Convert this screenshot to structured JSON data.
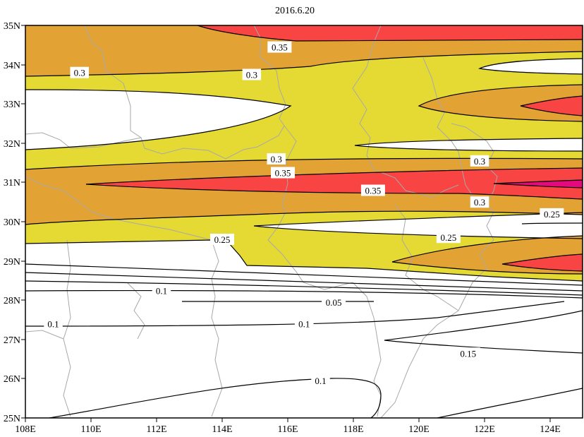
{
  "title": "2016.6.20",
  "colors": {
    "fill_025": "#e5da34",
    "fill_030": "#e3a334",
    "fill_035": "#f84443",
    "fill_040": "#e4097d",
    "contour_line": "#000000",
    "boundary_line": "#a8a8a8",
    "background": "#ffffff"
  },
  "axes": {
    "x_ticks": [
      "108E",
      "110E",
      "112E",
      "114E",
      "116E",
      "118E",
      "120E",
      "122E",
      "124E"
    ],
    "y_ticks": [
      "35N",
      "34N",
      "33N",
      "32N",
      "31N",
      "30N",
      "29N",
      "28N",
      "27N",
      "26N",
      "25N"
    ]
  },
  "contour_labels": [
    {
      "text": "0.35",
      "lon": 115.75,
      "lat": 34.45
    },
    {
      "text": "0.3",
      "lon": 109.65,
      "lat": 33.8
    },
    {
      "text": "0.3",
      "lon": 114.9,
      "lat": 33.75
    },
    {
      "text": "0.3",
      "lon": 115.65,
      "lat": 31.6
    },
    {
      "text": "0.35",
      "lon": 115.85,
      "lat": 31.25
    },
    {
      "text": "0.35",
      "lon": 118.6,
      "lat": 30.8
    },
    {
      "text": "0.3",
      "lon": 121.85,
      "lat": 31.55
    },
    {
      "text": "0.3",
      "lon": 121.85,
      "lat": 30.5
    },
    {
      "text": "0.25",
      "lon": 124.05,
      "lat": 30.2
    },
    {
      "text": "0.25",
      "lon": 120.9,
      "lat": 29.6
    },
    {
      "text": "0.25",
      "lon": 114.0,
      "lat": 29.55
    },
    {
      "text": "0.1",
      "lon": 112.15,
      "lat": 28.25
    },
    {
      "text": "0.05",
      "lon": 117.4,
      "lat": 27.95
    },
    {
      "text": "0.1",
      "lon": 108.85,
      "lat": 27.4
    },
    {
      "text": "0.1",
      "lon": 116.5,
      "lat": 27.4
    },
    {
      "text": "0.15",
      "lon": 121.5,
      "lat": 26.65
    },
    {
      "text": "0.1",
      "lon": 117.0,
      "lat": 25.95
    }
  ]
}
